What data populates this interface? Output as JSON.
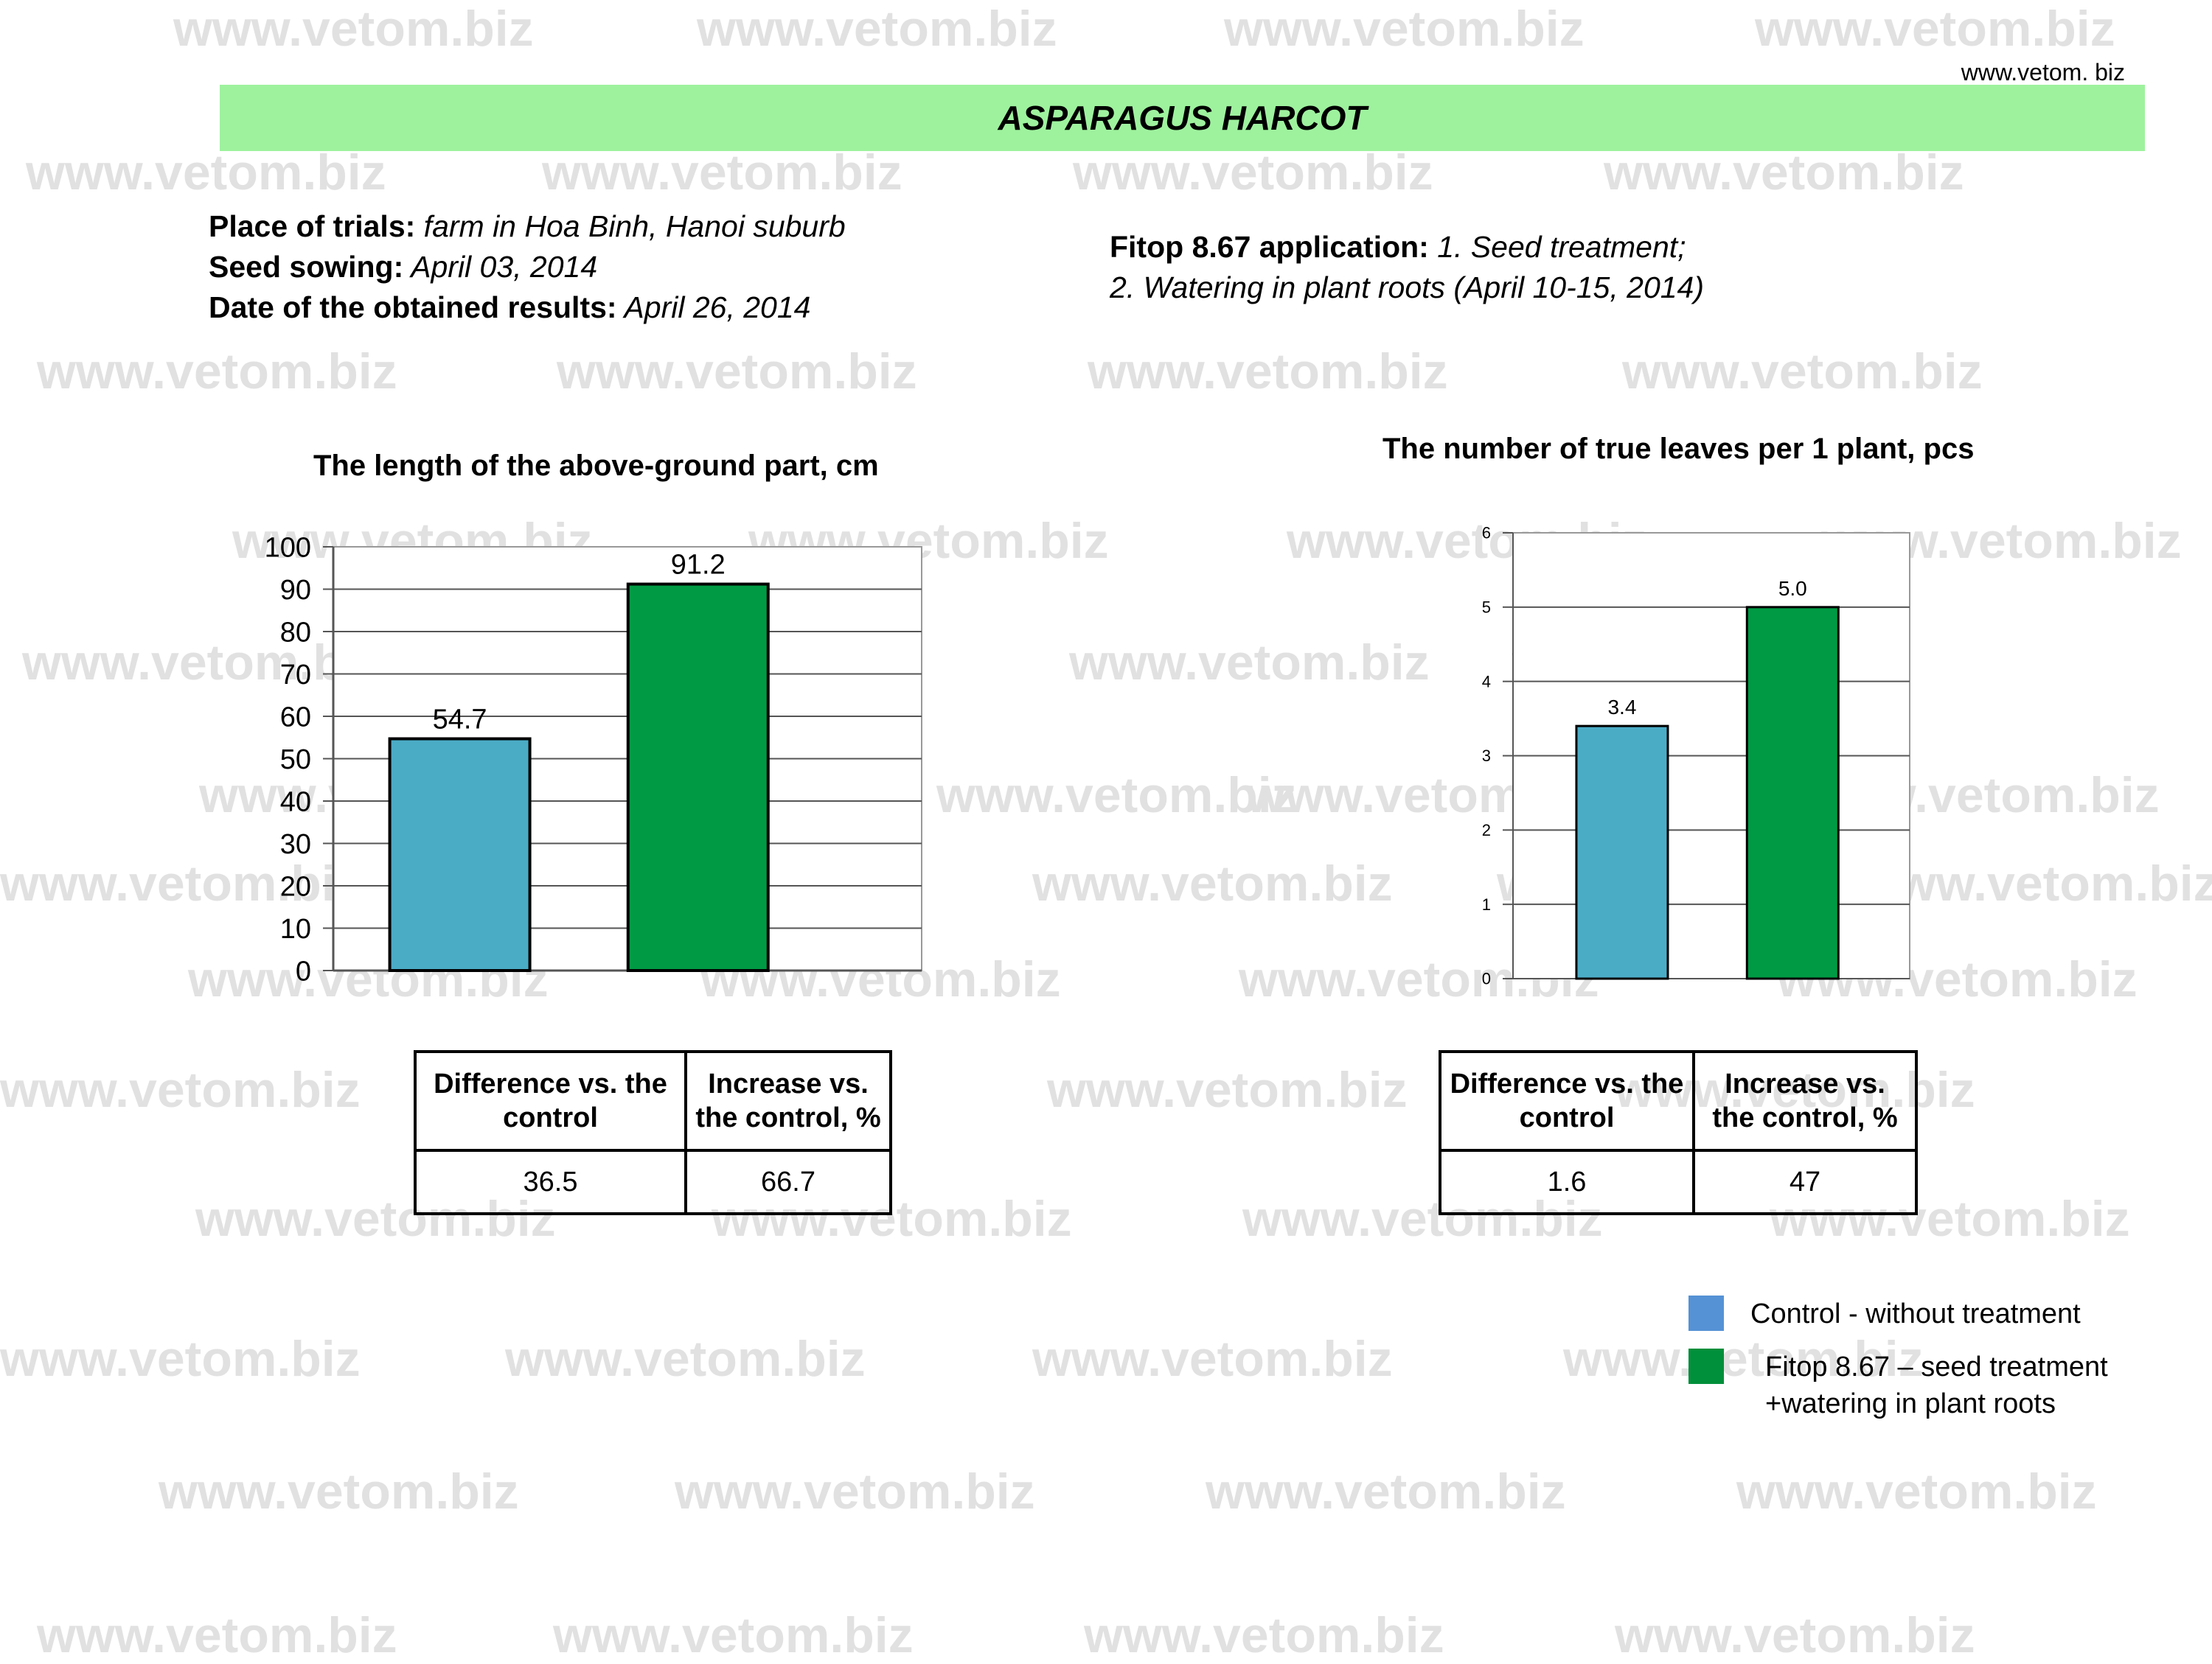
{
  "watermark_text": "www.vetom.biz",
  "header": {
    "site_url": "www.vetom. biz",
    "title": "ASPARAGUS HARCOT"
  },
  "info_left": [
    {
      "label": "Place of trials:",
      "value": " farm in Hoa Binh, Hanoi suburb"
    },
    {
      "label": "Seed sowing:",
      "value": " April 03, 2014"
    },
    {
      "label": "Date of  the obtained results:",
      "value": " April 26, 2014"
    }
  ],
  "info_right": {
    "label": "Fitop 8.67 application:",
    "line1": " 1. Seed treatment;",
    "line2": "2. Watering in plant roots (April 10-15, 2014)"
  },
  "chart_data": [
    {
      "type": "bar",
      "title": "The length of the above-ground part, cm",
      "categories": [
        "Control - without treatment",
        "Fitop 8.67 – seed treatment +watering in plant roots"
      ],
      "values": [
        54.7,
        91.2
      ],
      "value_labels": [
        "54.7",
        "91.2"
      ],
      "colors": [
        "#4bacc6",
        "#009a44"
      ],
      "ylim": [
        0,
        100
      ],
      "yticks": [
        0,
        10,
        20,
        30,
        40,
        50,
        60,
        70,
        80,
        90,
        100
      ],
      "ytick_labels": [
        "0",
        "10",
        "20",
        "30",
        "40",
        "50",
        "60",
        "70",
        "80",
        "90",
        "100"
      ],
      "grid": true
    },
    {
      "type": "bar",
      "title": "The number of true leaves per 1 plant, pcs",
      "categories": [
        "Control - without treatment",
        "Fitop 8.67 – seed treatment +watering in plant roots"
      ],
      "values": [
        3.4,
        5.0
      ],
      "value_labels": [
        "3.4",
        "5.0"
      ],
      "colors": [
        "#4bacc6",
        "#009a44"
      ],
      "ylim": [
        0,
        6
      ],
      "yticks": [
        0,
        1,
        2,
        3,
        4,
        5,
        6
      ],
      "ytick_labels": [
        "0",
        "1",
        "2",
        "3",
        "4",
        "5",
        "6"
      ],
      "grid": true
    }
  ],
  "tables": [
    {
      "headers": [
        "Difference vs. the control",
        "Increase vs. the control, %"
      ],
      "values": [
        "36.5",
        "66.7"
      ]
    },
    {
      "headers": [
        "Difference vs. the control",
        "Increase vs. the control, %"
      ],
      "values": [
        "1.6",
        "47"
      ]
    }
  ],
  "legend": [
    {
      "color": "#5592d5",
      "line1": "Control - without treatment",
      "line2": ""
    },
    {
      "color": "#008f3a",
      "line1": "Fitop 8.67 – seed treatment",
      "line2": "+watering in plant roots"
    }
  ]
}
